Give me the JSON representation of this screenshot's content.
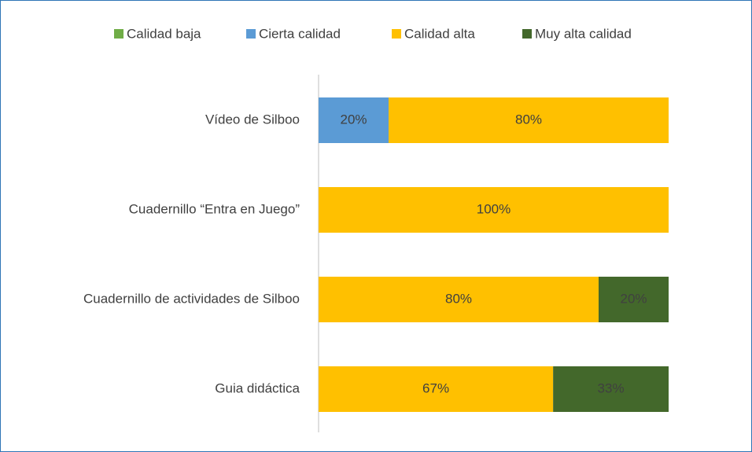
{
  "chart_data": {
    "type": "stacked-barh",
    "categories": [
      "Vídeo de Silboo",
      "Cuadernillo “Entra en Juego”",
      "Cuadernillo de actividades de Silboo",
      "Guia didáctica"
    ],
    "series": [
      {
        "name": "Calidad baja",
        "color": "#70ad47",
        "values": [
          0,
          0,
          0,
          0
        ],
        "value_labels": [
          null,
          null,
          null,
          null
        ]
      },
      {
        "name": "Cierta calidad",
        "color": "#5b9bd5",
        "values": [
          20,
          0,
          0,
          0
        ],
        "value_labels": [
          "20%",
          null,
          null,
          null
        ]
      },
      {
        "name": "Calidad alta",
        "color": "#ffc000",
        "values": [
          80,
          100,
          80,
          67
        ],
        "value_labels": [
          "80%",
          "100%",
          "80%",
          "67%"
        ]
      },
      {
        "name": "Muy alta calidad",
        "color": "#43682b",
        "values": [
          0,
          0,
          20,
          33
        ],
        "value_labels": [
          null,
          null,
          "20%",
          "33%"
        ]
      }
    ],
    "xlim": [
      0,
      100
    ],
    "legend": "top"
  }
}
